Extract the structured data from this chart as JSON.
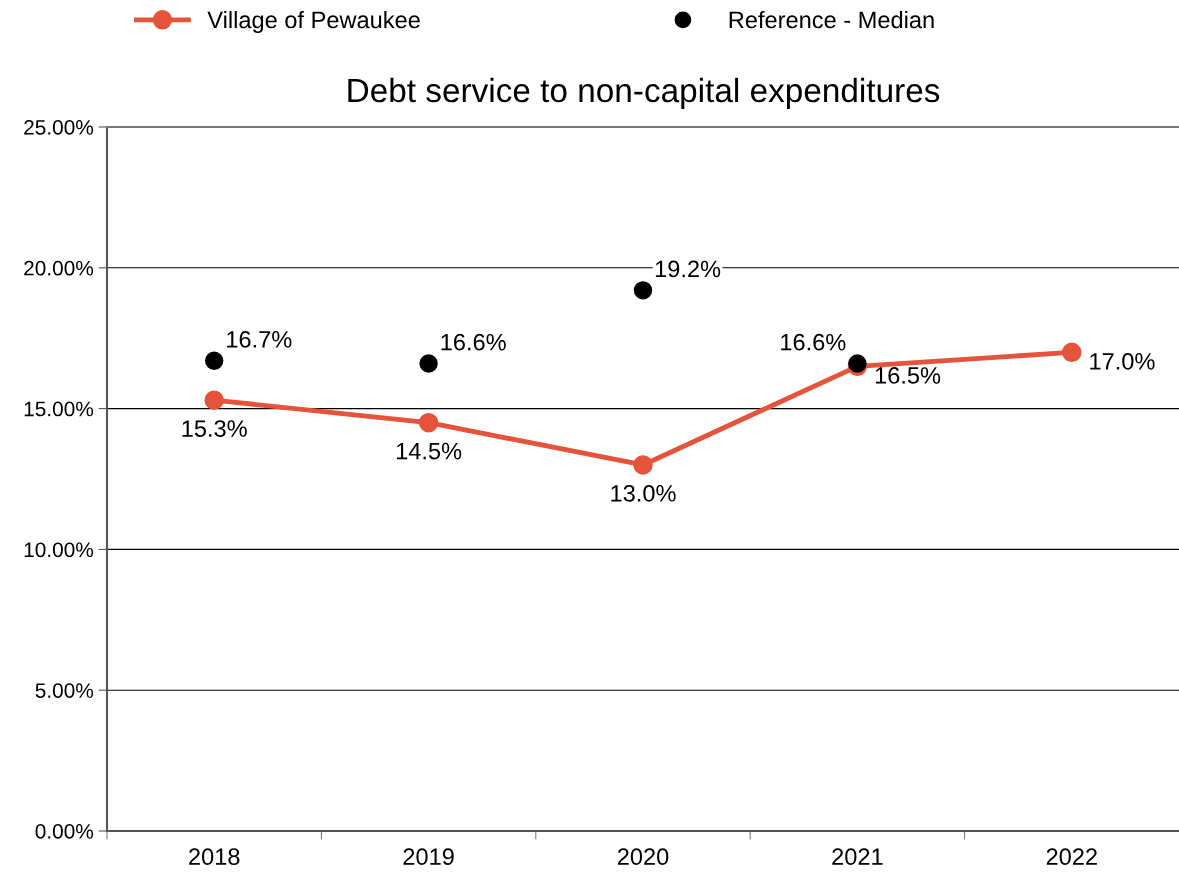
{
  "chart_data": {
    "type": "line",
    "title": "Debt service to non-capital expenditures",
    "categories": [
      "2018",
      "2019",
      "2020",
      "2021",
      "2022"
    ],
    "series": [
      {
        "name": "Village of Pewaukee",
        "color": "#e4533a",
        "marker": "circle",
        "values": [
          15.3,
          14.5,
          13.0,
          16.5,
          17.0
        ],
        "value_labels": [
          "15.3%",
          "14.5%",
          "13.0%",
          "16.5%",
          "17.0%"
        ]
      },
      {
        "name": "Reference - Median",
        "type": "scatter",
        "color": "#000000",
        "marker": "circle",
        "values": [
          16.7,
          16.6,
          19.2,
          16.6,
          null
        ],
        "value_labels": [
          "16.7%",
          "16.6%",
          "19.2%",
          "16.6%",
          null
        ]
      }
    ],
    "ylim": [
      0,
      25
    ],
    "yticks": [
      {
        "value": 0,
        "label": "0.00%"
      },
      {
        "value": 5,
        "label": "5.00%"
      },
      {
        "value": 10,
        "label": "10.00%"
      },
      {
        "value": 15,
        "label": "15.00%"
      },
      {
        "value": 20,
        "label": "20.00%"
      },
      {
        "value": 25,
        "label": "25.00%"
      }
    ],
    "grid": "y",
    "legend": "top"
  }
}
